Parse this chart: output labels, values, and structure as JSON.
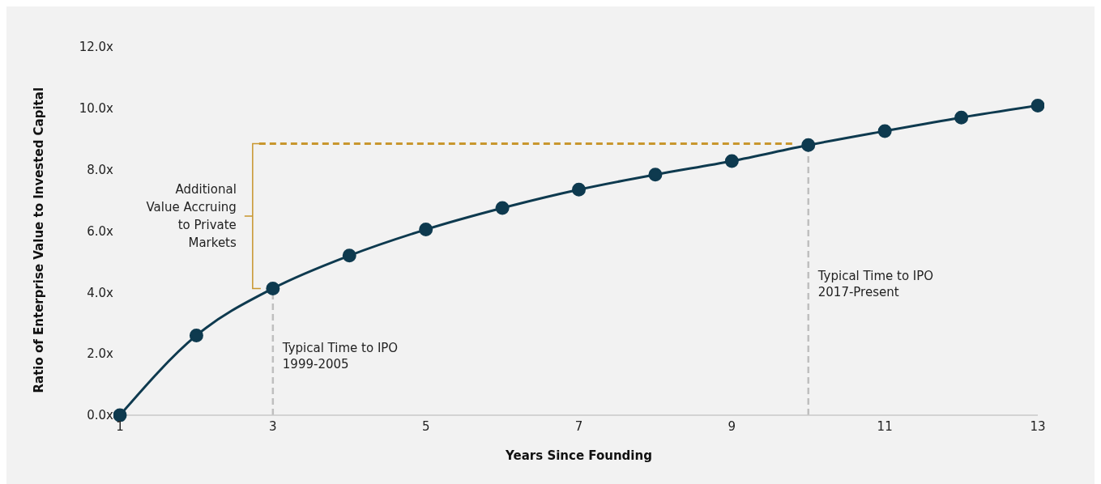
{
  "chart_data": {
    "type": "line",
    "xlabel": "Years Since Founding",
    "ylabel": "Ratio of Enterprise Value to Invested Capital",
    "x": [
      1,
      2,
      3,
      4,
      5,
      6,
      7,
      8,
      9,
      10,
      11,
      12,
      13
    ],
    "series": [
      {
        "color": "#0e3a4f",
        "values": [
          0,
          2.6,
          4.13,
          5.2,
          6.05,
          6.75,
          7.35,
          7.84,
          8.28,
          8.8,
          9.26,
          9.7,
          10.09
        ]
      }
    ],
    "xlim": [
      1,
      13
    ],
    "xticks": [
      1,
      3,
      5,
      7,
      9,
      11,
      13
    ],
    "ylim": [
      0,
      12
    ],
    "yticks": [
      {
        "value": 0,
        "label": "0.0x"
      },
      {
        "value": 2,
        "label": "2.0x"
      },
      {
        "value": 4,
        "label": "4.0x"
      },
      {
        "value": 6,
        "label": "6.0x"
      },
      {
        "value": 8,
        "label": "8.0x"
      },
      {
        "value": 10,
        "label": "10.0x"
      },
      {
        "value": 12,
        "label": "12.0x"
      }
    ],
    "ref_lines": [
      {
        "axis": "x",
        "value": 3,
        "label": "Typical Time to IPO 1999-2005",
        "color": "#bfbfbf",
        "line_style": "dashed"
      },
      {
        "axis": "x",
        "value": 10,
        "label": "Typical Time to IPO 2017-Present",
        "color": "#bfbfbf",
        "line_style": "dashed"
      },
      {
        "axis": "y",
        "value": 8.85,
        "color": "#c8962e",
        "line_style": "dashed"
      }
    ],
    "annotations": [
      "Additional Value Accruing to Private Markets"
    ],
    "grid": false,
    "legend": false,
    "marker": "circle",
    "line_style": "solid"
  }
}
